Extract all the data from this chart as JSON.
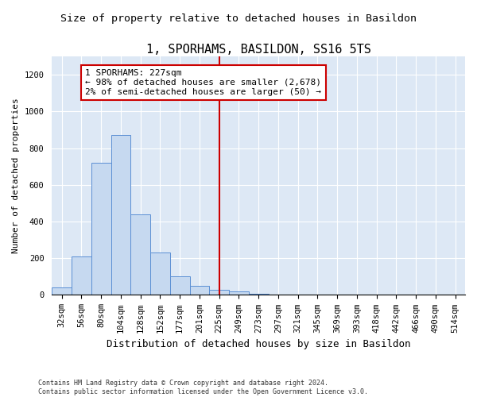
{
  "title": "1, SPORHAMS, BASILDON, SS16 5TS",
  "subtitle": "Size of property relative to detached houses in Basildon",
  "xlabel": "Distribution of detached houses by size in Basildon",
  "ylabel": "Number of detached properties",
  "footnote": "Contains HM Land Registry data © Crown copyright and database right 2024.\nContains public sector information licensed under the Open Government Licence v3.0.",
  "bar_labels": [
    "32sqm",
    "56sqm",
    "80sqm",
    "104sqm",
    "128sqm",
    "152sqm",
    "177sqm",
    "201sqm",
    "225sqm",
    "249sqm",
    "273sqm",
    "297sqm",
    "321sqm",
    "345sqm",
    "369sqm",
    "393sqm",
    "418sqm",
    "442sqm",
    "466sqm",
    "490sqm",
    "514sqm"
  ],
  "bar_values": [
    40,
    210,
    720,
    870,
    440,
    230,
    100,
    50,
    30,
    20,
    5,
    0,
    0,
    0,
    0,
    0,
    0,
    0,
    0,
    0,
    0
  ],
  "bar_color": "#c6d9f0",
  "bar_edge_color": "#5b8fd4",
  "vline_index": 8,
  "vline_color": "#cc0000",
  "annotation_text": "1 SPORHAMS: 227sqm\n← 98% of detached houses are smaller (2,678)\n2% of semi-detached houses are larger (50) →",
  "annotation_box_color": "#cc0000",
  "ylim": [
    0,
    1300
  ],
  "yticks": [
    0,
    200,
    400,
    600,
    800,
    1000,
    1200
  ],
  "bg_color": "#dde8f5",
  "title_fontsize": 11,
  "subtitle_fontsize": 9.5,
  "xlabel_fontsize": 9,
  "ylabel_fontsize": 8,
  "tick_fontsize": 7.5,
  "annotation_fontsize": 8
}
